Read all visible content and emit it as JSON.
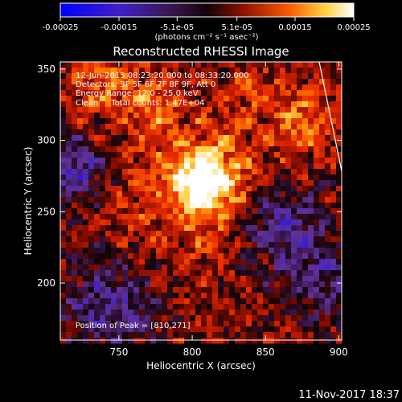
{
  "chart_data": {
    "type": "heatmap",
    "title": "Reconstructed RHESSI Image",
    "xlabel": "Heliocentric X (arcsec)",
    "ylabel": "Heliocentric Y (arcsec)",
    "xlim": [
      710,
      902
    ],
    "ylim": [
      160,
      355
    ],
    "xticks": [
      750,
      800,
      850,
      900
    ],
    "yticks": [
      200,
      250,
      300,
      350
    ],
    "colorbar": {
      "units_label": "(photons cm⁻² s⁻¹ asec⁻²)",
      "ticks": [
        "-0.00025",
        "-0.00015",
        "-5.1e-05",
        "5.1e-05",
        "0.00015",
        "0.00025"
      ],
      "tick_values": [
        -0.00025,
        -0.00015,
        -5.1e-05,
        5.1e-05,
        0.00015,
        0.00025
      ],
      "range": [
        -0.00025,
        0.00025
      ]
    },
    "annotations": [
      "12-Jun-2015 08:23:20.000 to 08:33:20.000",
      "Detectors: 3F 5F 6F 7F 8F 9F, Att 0",
      "Energy Range: 12.0 - 25.0 keV",
      "Clean     Total counts: 1.47E+04"
    ],
    "peak_label": "Position of Peak = [810,271]",
    "peak": [
      810,
      271
    ],
    "peak_value_approx": 0.00025,
    "background_range_approx": [
      -0.00015,
      0.0001
    ]
  },
  "footer": {
    "timestamp": "11-Nov-2017 18:37"
  }
}
